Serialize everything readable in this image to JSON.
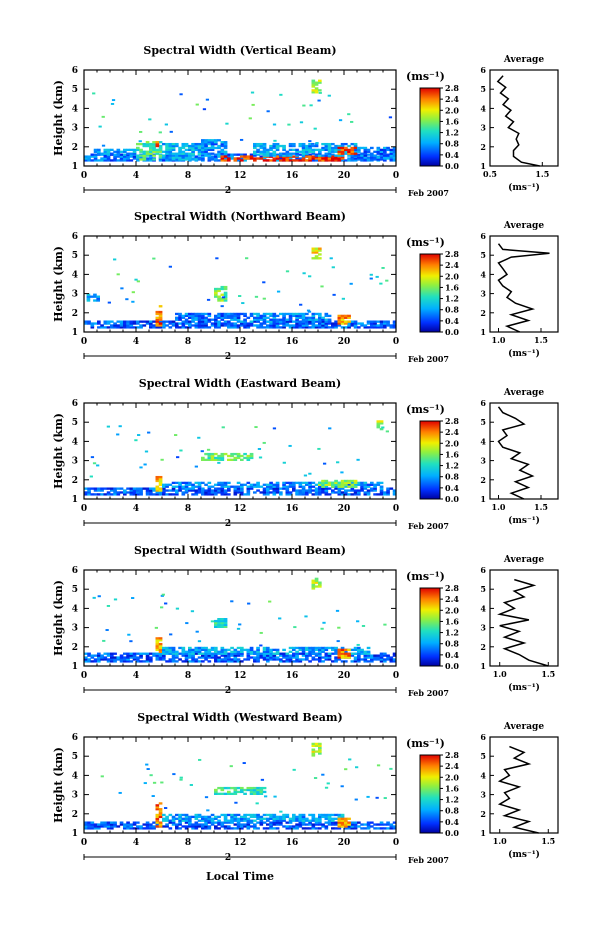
{
  "figure": {
    "x_axis_title": "Local Time",
    "date_label": "Feb 2007",
    "day_marker": "2",
    "colorbar_unit": "(ms⁻¹)",
    "avg_unit": "(ms⁻¹)",
    "avg_title": "Average"
  },
  "chart_data": [
    {
      "type": "heatmap",
      "title": "Spectral Width (Vertical Beam)",
      "ylabel": "Height (km)",
      "xlabel": "Local Time",
      "x_ticks": [
        "0",
        "4",
        "8",
        "12",
        "16",
        "20",
        "0"
      ],
      "y_ticks": [
        "1",
        "2",
        "3",
        "4",
        "5",
        "6"
      ],
      "xlim": [
        0,
        24
      ],
      "ylim": [
        1,
        6
      ],
      "colorbar": {
        "labels": [
          "0.0",
          "0.4",
          "0.8",
          "1.2",
          "1.6",
          "2.0",
          "2.4",
          "2.8"
        ],
        "unit": "(ms⁻¹)"
      },
      "regions": [
        {
          "x0": 0,
          "x1": 24,
          "y0": 1.25,
          "y1": 1.6,
          "v": 0.6
        },
        {
          "x0": 0.5,
          "x1": 4,
          "y0": 1.6,
          "y1": 1.9,
          "v": 0.8
        },
        {
          "x0": 4,
          "x1": 6,
          "y0": 1.3,
          "y1": 2.3,
          "v": 1.4
        },
        {
          "x0": 5.5,
          "x1": 6,
          "y0": 2.0,
          "y1": 2.3,
          "v": 2.6
        },
        {
          "x0": 6,
          "x1": 9,
          "y0": 1.3,
          "y1": 2.2,
          "v": 0.9
        },
        {
          "x0": 9,
          "x1": 11,
          "y0": 1.3,
          "y1": 2.4,
          "v": 0.7
        },
        {
          "x0": 10.5,
          "x1": 20,
          "y0": 1.25,
          "y1": 1.5,
          "v": 2.7
        },
        {
          "x0": 13,
          "x1": 21,
          "y0": 1.5,
          "y1": 2.2,
          "v": 0.8
        },
        {
          "x0": 19.5,
          "x1": 21,
          "y0": 1.6,
          "y1": 2.0,
          "v": 2.5
        },
        {
          "x0": 21,
          "x1": 24,
          "y0": 1.3,
          "y1": 2.0,
          "v": 0.6
        },
        {
          "x0": 17.5,
          "x1": 18.2,
          "y0": 4.8,
          "y1": 5.4,
          "v": 1.8
        }
      ],
      "profile": {
        "xlim": [
          0.5,
          1.8
        ],
        "x_ticks": [
          "0.5",
          "1.5"
        ],
        "points": [
          [
            1.45,
            1.0
          ],
          [
            1.1,
            1.2
          ],
          [
            0.95,
            1.5
          ],
          [
            0.95,
            1.8
          ],
          [
            1.05,
            2.1
          ],
          [
            1.0,
            2.4
          ],
          [
            1.05,
            2.7
          ],
          [
            0.85,
            3.0
          ],
          [
            0.95,
            3.3
          ],
          [
            0.8,
            3.6
          ],
          [
            0.9,
            3.9
          ],
          [
            0.75,
            4.2
          ],
          [
            0.85,
            4.5
          ],
          [
            0.7,
            4.8
          ],
          [
            0.8,
            5.1
          ],
          [
            0.65,
            5.4
          ],
          [
            0.75,
            5.7
          ]
        ]
      }
    },
    {
      "type": "heatmap",
      "title": "Spectral Width (Northward Beam)",
      "ylabel": "Height (km)",
      "xlabel": "Local Time",
      "x_ticks": [
        "0",
        "4",
        "8",
        "12",
        "16",
        "20",
        "0"
      ],
      "y_ticks": [
        "1",
        "2",
        "3",
        "4",
        "5",
        "6"
      ],
      "xlim": [
        0,
        24
      ],
      "ylim": [
        1,
        6
      ],
      "colorbar": {
        "labels": [
          "0.0",
          "0.4",
          "0.8",
          "1.2",
          "1.6",
          "2.0",
          "2.4",
          "2.8"
        ],
        "unit": "(ms⁻¹)"
      },
      "regions": [
        {
          "x0": 0,
          "x1": 24,
          "y0": 1.2,
          "y1": 1.6,
          "v": 0.5
        },
        {
          "x0": 5.5,
          "x1": 6,
          "y0": 1.3,
          "y1": 2.4,
          "v": 2.5
        },
        {
          "x0": 7,
          "x1": 12,
          "y0": 1.6,
          "y1": 2.0,
          "v": 0.6
        },
        {
          "x0": 10,
          "x1": 11,
          "y0": 2.6,
          "y1": 3.4,
          "v": 1.6
        },
        {
          "x0": 12,
          "x1": 19,
          "y0": 1.5,
          "y1": 2.0,
          "v": 0.7
        },
        {
          "x0": 19.5,
          "x1": 20.5,
          "y0": 1.4,
          "y1": 1.9,
          "v": 2.3
        },
        {
          "x0": 0.2,
          "x1": 1,
          "y0": 2.6,
          "y1": 3.0,
          "v": 0.8
        },
        {
          "x0": 17.5,
          "x1": 18.2,
          "y0": 4.8,
          "y1": 5.3,
          "v": 2.0
        }
      ],
      "profile": {
        "xlim": [
          0.9,
          1.7
        ],
        "x_ticks": [
          "1.0",
          "1.5"
        ],
        "points": [
          [
            1.25,
            1.0
          ],
          [
            1.1,
            1.3
          ],
          [
            1.35,
            1.6
          ],
          [
            1.15,
            1.9
          ],
          [
            1.4,
            2.2
          ],
          [
            1.2,
            2.5
          ],
          [
            1.1,
            2.8
          ],
          [
            1.15,
            3.1
          ],
          [
            1.05,
            3.4
          ],
          [
            1.0,
            3.7
          ],
          [
            1.1,
            4.0
          ],
          [
            1.05,
            4.3
          ],
          [
            1.0,
            4.6
          ],
          [
            1.15,
            4.9
          ],
          [
            1.6,
            5.1
          ],
          [
            1.05,
            5.3
          ],
          [
            1.0,
            5.6
          ]
        ]
      }
    },
    {
      "type": "heatmap",
      "title": "Spectral Width (Eastward Beam)",
      "ylabel": "Height (km)",
      "xlabel": "Local Time",
      "x_ticks": [
        "0",
        "4",
        "8",
        "12",
        "16",
        "20",
        "0"
      ],
      "y_ticks": [
        "1",
        "2",
        "3",
        "4",
        "5",
        "6"
      ],
      "xlim": [
        0,
        24
      ],
      "ylim": [
        1,
        6
      ],
      "colorbar": {
        "labels": [
          "0.0",
          "0.4",
          "0.8",
          "1.2",
          "1.6",
          "2.0",
          "2.4",
          "2.8"
        ],
        "unit": "(ms⁻¹)"
      },
      "regions": [
        {
          "x0": 0,
          "x1": 24,
          "y0": 1.2,
          "y1": 1.6,
          "v": 0.5
        },
        {
          "x0": 5.5,
          "x1": 6,
          "y0": 1.4,
          "y1": 2.2,
          "v": 2.2
        },
        {
          "x0": 6,
          "x1": 23,
          "y0": 1.6,
          "y1": 1.9,
          "v": 0.7
        },
        {
          "x0": 9,
          "x1": 13,
          "y0": 3.0,
          "y1": 3.4,
          "v": 1.5
        },
        {
          "x0": 18,
          "x1": 21,
          "y0": 1.6,
          "y1": 2.0,
          "v": 1.6
        },
        {
          "x0": 22.5,
          "x1": 23,
          "y0": 4.6,
          "y1": 5.0,
          "v": 1.8
        }
      ],
      "profile": {
        "xlim": [
          0.9,
          1.7
        ],
        "x_ticks": [
          "1.0",
          "1.5"
        ],
        "points": [
          [
            1.3,
            1.0
          ],
          [
            1.15,
            1.3
          ],
          [
            1.35,
            1.6
          ],
          [
            1.2,
            1.9
          ],
          [
            1.4,
            2.2
          ],
          [
            1.25,
            2.5
          ],
          [
            1.35,
            2.8
          ],
          [
            1.15,
            3.1
          ],
          [
            1.25,
            3.4
          ],
          [
            1.05,
            3.7
          ],
          [
            1.0,
            4.0
          ],
          [
            1.1,
            4.3
          ],
          [
            1.05,
            4.6
          ],
          [
            1.3,
            4.9
          ],
          [
            1.2,
            5.2
          ],
          [
            1.05,
            5.5
          ],
          [
            1.0,
            5.8
          ]
        ]
      }
    },
    {
      "type": "heatmap",
      "title": "Spectral Width (Southward Beam)",
      "ylabel": "Height (km)",
      "xlabel": "Local Time",
      "x_ticks": [
        "0",
        "4",
        "8",
        "12",
        "16",
        "20",
        "0"
      ],
      "y_ticks": [
        "1",
        "2",
        "3",
        "4",
        "5",
        "6"
      ],
      "xlim": [
        0,
        24
      ],
      "ylim": [
        1,
        6
      ],
      "colorbar": {
        "labels": [
          "0.0",
          "0.4",
          "0.8",
          "1.2",
          "1.6",
          "2.0",
          "2.4",
          "2.8"
        ],
        "unit": "(ms⁻¹)"
      },
      "regions": [
        {
          "x0": 0,
          "x1": 24,
          "y0": 1.2,
          "y1": 1.7,
          "v": 0.5
        },
        {
          "x0": 5.5,
          "x1": 6,
          "y0": 1.7,
          "y1": 2.5,
          "v": 2.2
        },
        {
          "x0": 6,
          "x1": 22,
          "y0": 1.6,
          "y1": 2.0,
          "v": 0.8
        },
        {
          "x0": 19.5,
          "x1": 20.5,
          "y0": 1.4,
          "y1": 1.9,
          "v": 2.4
        },
        {
          "x0": 10,
          "x1": 11,
          "y0": 3.0,
          "y1": 3.5,
          "v": 1.2
        },
        {
          "x0": 17.5,
          "x1": 18.2,
          "y0": 5.0,
          "y1": 5.5,
          "v": 1.8
        }
      ],
      "profile": {
        "xlim": [
          0.9,
          1.6
        ],
        "x_ticks": [
          "1.0",
          "1.5"
        ],
        "points": [
          [
            1.5,
            1.0
          ],
          [
            1.3,
            1.3
          ],
          [
            1.2,
            1.6
          ],
          [
            1.05,
            1.9
          ],
          [
            1.25,
            2.2
          ],
          [
            1.05,
            2.5
          ],
          [
            1.2,
            2.8
          ],
          [
            1.0,
            3.1
          ],
          [
            1.3,
            3.4
          ],
          [
            1.0,
            3.7
          ],
          [
            1.15,
            4.0
          ],
          [
            1.05,
            4.3
          ],
          [
            1.25,
            4.6
          ],
          [
            1.15,
            4.9
          ],
          [
            1.35,
            5.2
          ],
          [
            1.15,
            5.5
          ]
        ]
      }
    },
    {
      "type": "heatmap",
      "title": "Spectral Width (Westward Beam)",
      "ylabel": "Height (km)",
      "xlabel": "Local Time",
      "x_ticks": [
        "0",
        "4",
        "8",
        "12",
        "16",
        "20",
        "0"
      ],
      "y_ticks": [
        "1",
        "2",
        "3",
        "4",
        "5",
        "6"
      ],
      "xlim": [
        0,
        24
      ],
      "ylim": [
        1,
        6
      ],
      "colorbar": {
        "labels": [
          "0.0",
          "0.4",
          "0.8",
          "1.2",
          "1.6",
          "2.0",
          "2.4",
          "2.8"
        ],
        "unit": "(ms⁻¹)"
      },
      "regions": [
        {
          "x0": 0,
          "x1": 24,
          "y0": 1.2,
          "y1": 1.6,
          "v": 0.5
        },
        {
          "x0": 5.5,
          "x1": 6,
          "y0": 1.3,
          "y1": 2.6,
          "v": 2.4
        },
        {
          "x0": 6,
          "x1": 20,
          "y0": 1.6,
          "y1": 2.0,
          "v": 0.8
        },
        {
          "x0": 10,
          "x1": 14,
          "y0": 3.0,
          "y1": 3.4,
          "v": 1.3
        },
        {
          "x0": 19.5,
          "x1": 20.5,
          "y0": 1.3,
          "y1": 1.8,
          "v": 2.3
        },
        {
          "x0": 17.5,
          "x1": 18.2,
          "y0": 5.0,
          "y1": 5.6,
          "v": 1.8
        }
      ],
      "profile": {
        "xlim": [
          0.9,
          1.6
        ],
        "x_ticks": [
          "1.0",
          "1.5"
        ],
        "points": [
          [
            1.4,
            1.0
          ],
          [
            1.15,
            1.3
          ],
          [
            1.3,
            1.6
          ],
          [
            1.05,
            1.9
          ],
          [
            1.2,
            2.2
          ],
          [
            1.0,
            2.5
          ],
          [
            1.1,
            2.8
          ],
          [
            1.05,
            3.1
          ],
          [
            1.2,
            3.4
          ],
          [
            1.0,
            3.7
          ],
          [
            1.1,
            4.0
          ],
          [
            1.05,
            4.3
          ],
          [
            1.3,
            4.6
          ],
          [
            1.15,
            4.9
          ],
          [
            1.25,
            5.2
          ],
          [
            1.1,
            5.5
          ]
        ]
      }
    }
  ]
}
